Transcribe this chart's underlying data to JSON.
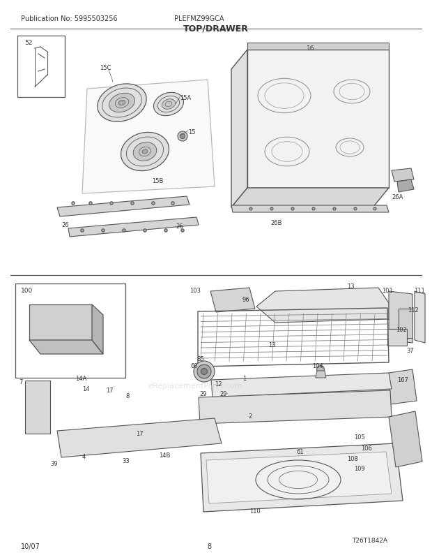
{
  "title": "TOP/DRAWER",
  "pub_no": "Publication No: 5995503256",
  "model": "PLEFMZ99GCA",
  "date": "10/07",
  "page": "8",
  "watermark": "eReplacementParts.com",
  "diagram_id": "T26T1842A",
  "bg_color": "#ffffff",
  "line_color": "#555555",
  "text_color": "#333333",
  "figsize": [
    6.2,
    8.03
  ],
  "dpi": 100
}
